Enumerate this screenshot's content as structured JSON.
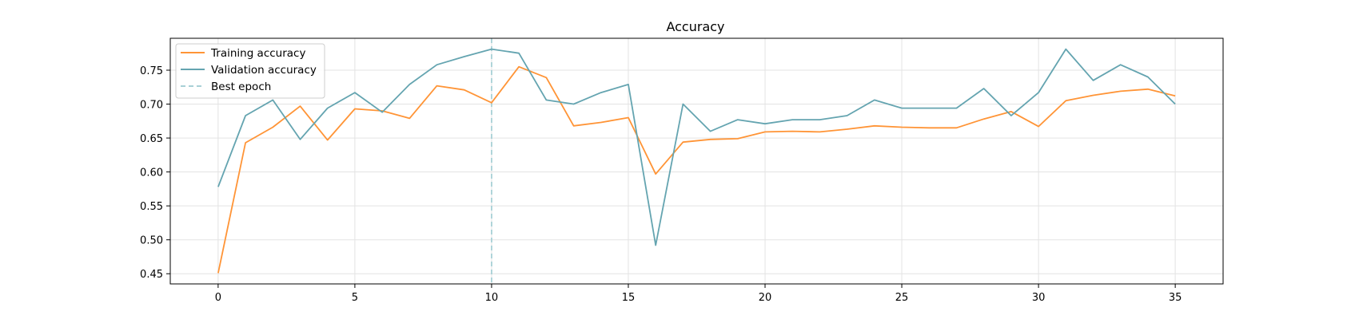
{
  "chart_data": {
    "type": "line",
    "title": "Accuracy",
    "xlabel": "",
    "ylabel": "",
    "xlim": [
      -1.75,
      36.75
    ],
    "ylim": [
      0.435,
      0.797
    ],
    "xticks": [
      0,
      5,
      10,
      15,
      20,
      25,
      30,
      35
    ],
    "yticks": [
      0.45,
      0.5,
      0.55,
      0.6,
      0.65,
      0.7,
      0.75
    ],
    "grid": true,
    "legend_position": "upper-left",
    "best_epoch": 10,
    "best_epoch_label": "Best epoch",
    "best_epoch_color": "#A8D0D6",
    "x": [
      0,
      1,
      2,
      3,
      4,
      5,
      6,
      7,
      8,
      9,
      10,
      11,
      12,
      13,
      14,
      15,
      16,
      17,
      18,
      19,
      20,
      21,
      22,
      23,
      24,
      25,
      26,
      27,
      28,
      29,
      30,
      31,
      32,
      33,
      34,
      35
    ],
    "series": [
      {
        "name": "Training accuracy",
        "color": "#FF9436",
        "values": [
          0.451,
          0.643,
          0.666,
          0.697,
          0.647,
          0.693,
          0.69,
          0.679,
          0.727,
          0.721,
          0.702,
          0.755,
          0.739,
          0.668,
          0.673,
          0.68,
          0.597,
          0.644,
          0.648,
          0.649,
          0.659,
          0.66,
          0.659,
          0.663,
          0.668,
          0.666,
          0.665,
          0.665,
          0.678,
          0.689,
          0.667,
          0.705,
          0.713,
          0.719,
          0.722,
          0.712
        ]
      },
      {
        "name": "Validation accuracy",
        "color": "#64A4B0",
        "values": [
          0.578,
          0.683,
          0.706,
          0.648,
          0.694,
          0.717,
          0.688,
          0.729,
          0.758,
          0.77,
          0.781,
          0.775,
          0.706,
          0.7,
          0.717,
          0.729,
          0.492,
          0.7,
          0.66,
          0.677,
          0.671,
          0.677,
          0.677,
          0.683,
          0.706,
          0.694,
          0.694,
          0.694,
          0.723,
          0.683,
          0.717,
          0.781,
          0.735,
          0.758,
          0.74,
          0.7
        ]
      }
    ]
  }
}
